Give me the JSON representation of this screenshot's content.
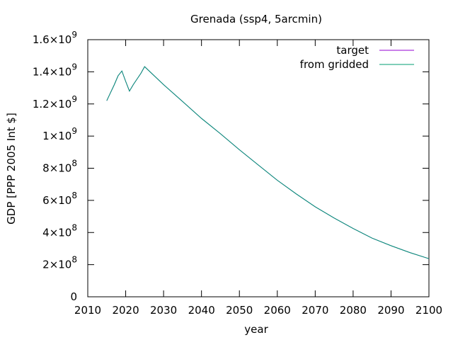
{
  "chart_data": {
    "type": "line",
    "title": "Grenada (ssp4, 5arcmin)",
    "xlabel": "year",
    "ylabel": "GDP [PPP 2005 Int $]",
    "xlim": [
      2010,
      2100
    ],
    "ylim": [
      0,
      1600000000
    ],
    "x_ticks": [
      {
        "value": 2010,
        "label": "2010"
      },
      {
        "value": 2020,
        "label": "2020"
      },
      {
        "value": 2030,
        "label": "2030"
      },
      {
        "value": 2040,
        "label": "2040"
      },
      {
        "value": 2050,
        "label": "2050"
      },
      {
        "value": 2060,
        "label": "2060"
      },
      {
        "value": 2070,
        "label": "2070"
      },
      {
        "value": 2080,
        "label": "2080"
      },
      {
        "value": 2090,
        "label": "2090"
      },
      {
        "value": 2100,
        "label": "2100"
      }
    ],
    "y_ticks": [
      {
        "value": 0,
        "mantissa": "0",
        "exponent": ""
      },
      {
        "value": 200000000,
        "mantissa": "2×10",
        "exponent": "8"
      },
      {
        "value": 400000000,
        "mantissa": "4×10",
        "exponent": "8"
      },
      {
        "value": 600000000,
        "mantissa": "6×10",
        "exponent": "8"
      },
      {
        "value": 800000000,
        "mantissa": "8×10",
        "exponent": "8"
      },
      {
        "value": 1000000000,
        "mantissa": "1×10",
        "exponent": "9"
      },
      {
        "value": 1200000000,
        "mantissa": "1.2×10",
        "exponent": "9"
      },
      {
        "value": 1400000000,
        "mantissa": "1.4×10",
        "exponent": "9"
      },
      {
        "value": 1600000000,
        "mantissa": "1.6×10",
        "exponent": "9"
      }
    ],
    "grid": false,
    "legend_position": "top-right",
    "x": [
      2015,
      2016,
      2017,
      2018,
      2019,
      2020,
      2021,
      2022,
      2023,
      2024,
      2025,
      2030,
      2035,
      2040,
      2045,
      2050,
      2055,
      2060,
      2065,
      2070,
      2075,
      2080,
      2085,
      2090,
      2095,
      2100
    ],
    "series": [
      {
        "name": "target",
        "color": "#9400d3",
        "values": [
          1220000000,
          1270000000,
          1320000000,
          1375000000,
          1405000000,
          1340000000,
          1280000000,
          1320000000,
          1355000000,
          1390000000,
          1432000000,
          1320000000,
          1215000000,
          1110000000,
          1015000000,
          915000000,
          820000000,
          725000000,
          640000000,
          560000000,
          490000000,
          425000000,
          365000000,
          318000000,
          275000000,
          237000000
        ]
      },
      {
        "name": "from gridded",
        "color": "#009e73",
        "values": [
          1220000000,
          1270000000,
          1320000000,
          1375000000,
          1405000000,
          1340000000,
          1280000000,
          1320000000,
          1355000000,
          1390000000,
          1432000000,
          1320000000,
          1215000000,
          1110000000,
          1015000000,
          915000000,
          820000000,
          725000000,
          640000000,
          560000000,
          490000000,
          425000000,
          365000000,
          318000000,
          275000000,
          237000000
        ]
      }
    ]
  }
}
